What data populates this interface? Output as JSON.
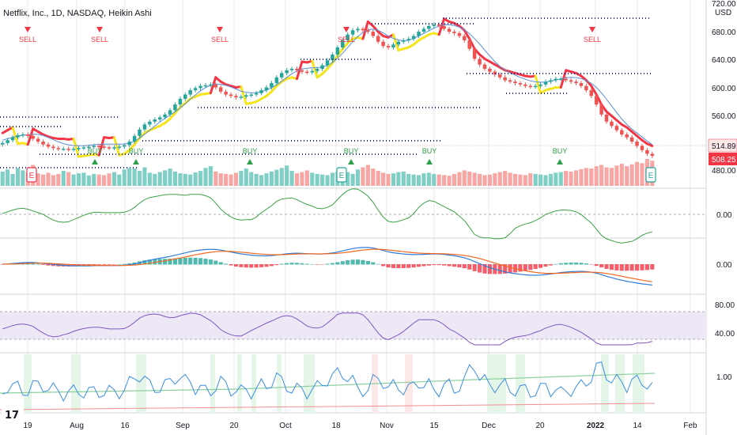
{
  "header": {
    "title": "Netflix, Inc., 1D, NASDAQ, Heikin Ashi",
    "currency": "USD"
  },
  "brand": {
    "logo_text": "17"
  },
  "colors": {
    "up": "#26a69a",
    "down": "#ef5350",
    "supertrend_down": "#f23645",
    "supertrend_up": "#f5e51a",
    "pivot_blue": "#1e2aa8",
    "vol_up": "#7fcfc7",
    "vol_down": "#f7a6a4",
    "osc_green": "#3aa145",
    "macd_line": "#2f7bd8",
    "signal_line": "#f26a21",
    "rsi": "#7e57c2",
    "rsi_band": "#ede7f6",
    "hl_blue": "#3c8ee5",
    "hl_green": "#8fd19e",
    "hl_red": "#f48f8f",
    "zone_green": "#e5f5e8",
    "zone_red": "#fde8e8",
    "last_price_bg": "#f23645",
    "grid_line": "#e9e9ea"
  },
  "chart_data": {
    "type": "candlestick",
    "title": "Netflix, Inc., 1D, NASDAQ, Heikin Ashi",
    "x_tick_labels": [
      "19",
      "Aug",
      "16",
      "Sep",
      "20",
      "Oct",
      "18",
      "Nov",
      "15",
      "Dec",
      "20",
      "2022",
      "14",
      "Feb"
    ],
    "price_axis": {
      "ticks": [
        "720.00",
        "680.00",
        "640.00",
        "600.00",
        "560.00",
        "480.00"
      ],
      "ylim": [
        466,
        722
      ]
    },
    "last_price": "514.89",
    "last_close": "508.25",
    "price_close_series": [
      526,
      530,
      534,
      537,
      538,
      536,
      532,
      528,
      524,
      521,
      519,
      518,
      518,
      517,
      518,
      519,
      520,
      521,
      522,
      521,
      520,
      519,
      520,
      521,
      523,
      528,
      536,
      545,
      552,
      556,
      559,
      562,
      566,
      572,
      580,
      588,
      594,
      600,
      603,
      606,
      607,
      608,
      604,
      598,
      594,
      592,
      590,
      591,
      593,
      594,
      596,
      600,
      604,
      610,
      618,
      624,
      628,
      630,
      628,
      626,
      625,
      627,
      630,
      635,
      642,
      650,
      660,
      670,
      678,
      684,
      686,
      684,
      682,
      676,
      668,
      662,
      660,
      664,
      668,
      670,
      672,
      676,
      682,
      686,
      690,
      692,
      690,
      686,
      682,
      680,
      676,
      670,
      658,
      644,
      636,
      630,
      626,
      622,
      618,
      614,
      612,
      610,
      608,
      606,
      605,
      606,
      608,
      612,
      614,
      616,
      616,
      614,
      612,
      610,
      606,
      600,
      592,
      580,
      566,
      556,
      550,
      544,
      538,
      534,
      528,
      522,
      516,
      511,
      508
    ],
    "volume": [
      48,
      55,
      40,
      60,
      52,
      45,
      70,
      42,
      38,
      44,
      36,
      40,
      50,
      46,
      38,
      42,
      44,
      35,
      40,
      38,
      36,
      42,
      46,
      38,
      55,
      60,
      58,
      50,
      62,
      44,
      40,
      46,
      52,
      58,
      48,
      42,
      40,
      38,
      45,
      50,
      60,
      66,
      48,
      42,
      40,
      38,
      44,
      50,
      58,
      46,
      40,
      36,
      42,
      48,
      54,
      60,
      68,
      50,
      42,
      46,
      52,
      44,
      40,
      38,
      36,
      44,
      48,
      52,
      46,
      40,
      55,
      62,
      70,
      58,
      50,
      44,
      40,
      42,
      46,
      48,
      40,
      38,
      36,
      42,
      44,
      40,
      38,
      36,
      34,
      40,
      46,
      52,
      48,
      44,
      40,
      36,
      38,
      42,
      46,
      50,
      44,
      40,
      38,
      36,
      42,
      40,
      38,
      36,
      40,
      44,
      46,
      50,
      48,
      52,
      56,
      60,
      58,
      66,
      70,
      62,
      60,
      68,
      74,
      66,
      72,
      80,
      76,
      90,
      84
    ],
    "buy_signals": [
      "BUY",
      "BUY",
      "BUY",
      "BUY",
      "BUY",
      "BUY"
    ],
    "sell_signals": [
      "SELL",
      "SELL",
      "SELL",
      "SELL",
      "SELL"
    ],
    "earnings_markers": [
      "E",
      "E",
      "E"
    ],
    "panes": {
      "oscillator": {
        "zero_label": "0.00"
      },
      "macd": {
        "zero_label": "0.00"
      },
      "rsi": {
        "upper_label": "80.00",
        "lower_label": "40.00"
      },
      "volatility": {
        "level_label": "1.00"
      }
    }
  }
}
